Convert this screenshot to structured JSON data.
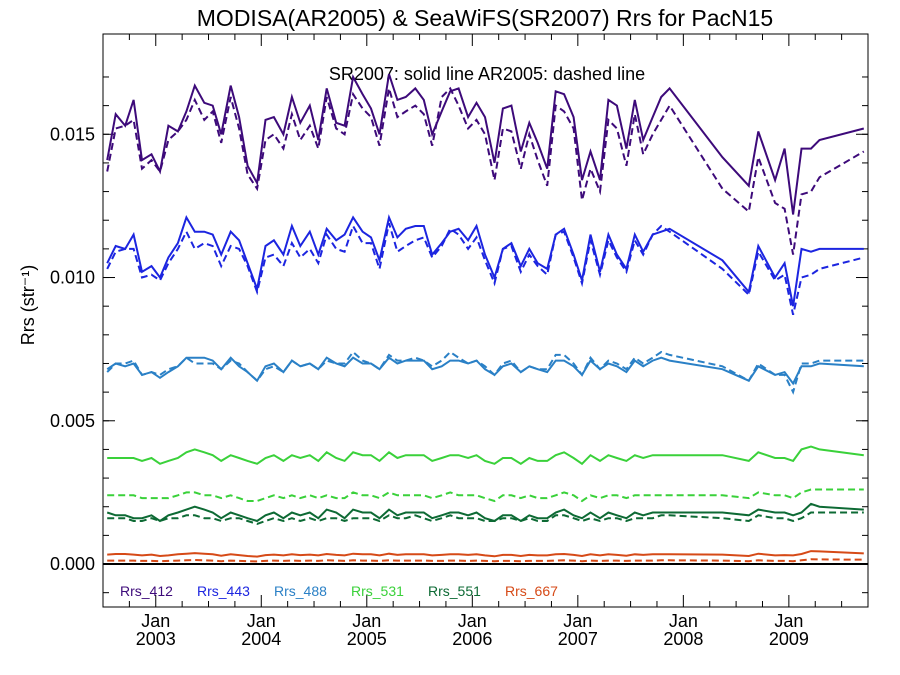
{
  "chart_data": {
    "type": "line",
    "title": "MODISA(AR2005) & SeaWiFS(SR2007)  Rrs for PacN15",
    "annotation": "SR2007: solid line   AR2005: dashed line",
    "ylabel": "Rrs (str⁻¹)",
    "xlabel": "",
    "ylim": [
      -0.0015,
      0.0185
    ],
    "xlim": [
      2002.5,
      2009.75
    ],
    "yticks": [
      0.0,
      0.005,
      0.01,
      0.015
    ],
    "ytick_labels": [
      "0.000",
      "0.005",
      "0.010",
      "0.015"
    ],
    "xticks": [
      2003.0,
      2004.0,
      2005.0,
      2006.0,
      2007.0,
      2008.0,
      2009.0
    ],
    "xtick_labels": [
      [
        "Jan",
        "2003"
      ],
      [
        "Jan",
        "2004"
      ],
      [
        "Jan",
        "2005"
      ],
      [
        "Jan",
        "2006"
      ],
      [
        "Jan",
        "2007"
      ],
      [
        "Jan",
        "2008"
      ],
      [
        "Jan",
        "2009"
      ]
    ],
    "x": [
      2002.54,
      2002.62,
      2002.71,
      2002.79,
      2002.87,
      2002.96,
      2003.04,
      2003.12,
      2003.21,
      2003.29,
      2003.37,
      2003.46,
      2003.54,
      2003.62,
      2003.71,
      2003.79,
      2003.87,
      2003.96,
      2004.04,
      2004.12,
      2004.21,
      2004.29,
      2004.37,
      2004.46,
      2004.54,
      2004.62,
      2004.71,
      2004.79,
      2004.87,
      2004.96,
      2005.04,
      2005.12,
      2005.21,
      2005.29,
      2005.37,
      2005.46,
      2005.54,
      2005.62,
      2005.71,
      2005.79,
      2005.87,
      2005.96,
      2006.04,
      2006.12,
      2006.21,
      2006.29,
      2006.37,
      2006.46,
      2006.54,
      2006.62,
      2006.71,
      2006.79,
      2006.87,
      2006.96,
      2007.04,
      2007.12,
      2007.21,
      2007.29,
      2007.37,
      2007.46,
      2007.54,
      2007.62,
      2007.71,
      2007.79,
      2007.87,
      2008.37,
      2008.62,
      2008.71,
      2008.87,
      2008.96,
      2009.04,
      2009.12,
      2009.21,
      2009.29,
      2009.71
    ],
    "zero_line": 0.0,
    "series": [
      {
        "name": "Rrs_412",
        "color": "#3d0a7a",
        "sr2007": [
          0.0141,
          0.0157,
          0.0153,
          0.0162,
          0.0141,
          0.0143,
          0.0137,
          0.0153,
          0.0151,
          0.0158,
          0.0167,
          0.0161,
          0.016,
          0.015,
          0.0167,
          0.0156,
          0.0139,
          0.0133,
          0.0155,
          0.0156,
          0.015,
          0.0163,
          0.0154,
          0.016,
          0.0148,
          0.0166,
          0.0154,
          0.0153,
          0.017,
          0.0164,
          0.0159,
          0.015,
          0.0171,
          0.0162,
          0.0163,
          0.0166,
          0.0162,
          0.015,
          0.0158,
          0.0165,
          0.0166,
          0.0156,
          0.0161,
          0.0156,
          0.014,
          0.0159,
          0.016,
          0.0144,
          0.0154,
          0.0147,
          0.0138,
          0.0165,
          0.0164,
          0.0156,
          0.0134,
          0.0144,
          0.0134,
          0.0162,
          0.016,
          0.0145,
          0.0162,
          0.0148,
          0.0156,
          0.0163,
          0.0166,
          0.0142,
          0.0132,
          0.0151,
          0.0134,
          0.0145,
          0.0122,
          0.0145,
          0.0145,
          0.0148,
          0.0152
        ],
        "ar2005": [
          0.0137,
          0.0152,
          0.0153,
          0.0155,
          0.0138,
          0.0141,
          0.0137,
          0.0148,
          0.0151,
          0.0155,
          0.0162,
          0.0155,
          0.0158,
          0.0147,
          0.0163,
          0.0152,
          0.0136,
          0.0131,
          0.0148,
          0.015,
          0.0145,
          0.0157,
          0.0148,
          0.0153,
          0.0145,
          0.0163,
          0.0152,
          0.015,
          0.0164,
          0.0159,
          0.0156,
          0.0146,
          0.0166,
          0.0156,
          0.0158,
          0.016,
          0.0157,
          0.0146,
          0.0163,
          0.0166,
          0.016,
          0.0152,
          0.0155,
          0.015,
          0.0134,
          0.0152,
          0.0151,
          0.0138,
          0.015,
          0.0141,
          0.0132,
          0.016,
          0.0158,
          0.0152,
          0.0127,
          0.0138,
          0.013,
          0.0155,
          0.0152,
          0.0139,
          0.0157,
          0.0143,
          0.015,
          0.0155,
          0.016,
          0.0131,
          0.0123,
          0.0142,
          0.0126,
          0.0124,
          0.0108,
          0.0129,
          0.013,
          0.0135,
          0.0144
        ]
      },
      {
        "name": "Rrs_443",
        "color": "#1c25e0",
        "sr2007": [
          0.0105,
          0.0111,
          0.011,
          0.0115,
          0.0102,
          0.0104,
          0.01,
          0.0107,
          0.0112,
          0.0121,
          0.0116,
          0.0116,
          0.0115,
          0.0108,
          0.0116,
          0.0113,
          0.0105,
          0.0096,
          0.0111,
          0.0113,
          0.0108,
          0.0118,
          0.0111,
          0.0116,
          0.0108,
          0.0117,
          0.0113,
          0.0115,
          0.0121,
          0.0116,
          0.0114,
          0.0106,
          0.0121,
          0.0114,
          0.0117,
          0.0118,
          0.0118,
          0.0108,
          0.0112,
          0.0116,
          0.0117,
          0.0113,
          0.0118,
          0.0108,
          0.01,
          0.011,
          0.0112,
          0.0104,
          0.011,
          0.0105,
          0.0103,
          0.0115,
          0.0117,
          0.0108,
          0.0099,
          0.0115,
          0.0102,
          0.0115,
          0.0108,
          0.0103,
          0.0115,
          0.0109,
          0.0115,
          0.0116,
          0.0117,
          0.0106,
          0.0095,
          0.0111,
          0.01,
          0.0105,
          0.009,
          0.011,
          0.0109,
          0.011,
          0.011
        ],
        "ar2005": [
          0.0103,
          0.0109,
          0.011,
          0.011,
          0.01,
          0.0101,
          0.0099,
          0.0105,
          0.011,
          0.0116,
          0.011,
          0.0112,
          0.0111,
          0.0104,
          0.0111,
          0.011,
          0.0104,
          0.0095,
          0.0107,
          0.0108,
          0.0104,
          0.0112,
          0.0107,
          0.011,
          0.0105,
          0.0115,
          0.011,
          0.0109,
          0.0118,
          0.0112,
          0.0112,
          0.0103,
          0.0119,
          0.0109,
          0.0111,
          0.0113,
          0.0114,
          0.0107,
          0.0111,
          0.0117,
          0.0115,
          0.011,
          0.0114,
          0.0106,
          0.0098,
          0.011,
          0.0111,
          0.0102,
          0.0108,
          0.0104,
          0.0101,
          0.0115,
          0.0116,
          0.0107,
          0.0098,
          0.0113,
          0.0101,
          0.0113,
          0.0107,
          0.0102,
          0.0113,
          0.0108,
          0.0115,
          0.0118,
          0.0116,
          0.0103,
          0.0094,
          0.0109,
          0.0099,
          0.0101,
          0.0087,
          0.01,
          0.0101,
          0.0103,
          0.0107
        ]
      },
      {
        "name": "Rrs_488",
        "color": "#2a80c6",
        "sr2007": [
          0.0068,
          0.007,
          0.0069,
          0.007,
          0.0066,
          0.0067,
          0.0065,
          0.0067,
          0.0069,
          0.0072,
          0.0072,
          0.0072,
          0.0071,
          0.0068,
          0.0072,
          0.0069,
          0.0067,
          0.0064,
          0.0069,
          0.007,
          0.0067,
          0.0071,
          0.0069,
          0.007,
          0.0068,
          0.0072,
          0.007,
          0.0069,
          0.0072,
          0.007,
          0.007,
          0.0068,
          0.0072,
          0.007,
          0.0071,
          0.0071,
          0.0071,
          0.0068,
          0.0069,
          0.0071,
          0.0071,
          0.007,
          0.0071,
          0.0068,
          0.0066,
          0.0069,
          0.007,
          0.0067,
          0.0069,
          0.0068,
          0.0067,
          0.0071,
          0.0071,
          0.0069,
          0.0066,
          0.0071,
          0.0068,
          0.007,
          0.0069,
          0.0067,
          0.0071,
          0.0069,
          0.0071,
          0.0072,
          0.0071,
          0.0068,
          0.0064,
          0.0069,
          0.0066,
          0.0067,
          0.0063,
          0.0069,
          0.0069,
          0.007,
          0.0069
        ],
        "ar2005": [
          0.0067,
          0.007,
          0.007,
          0.0071,
          0.0066,
          0.0067,
          0.0066,
          0.0068,
          0.0069,
          0.0072,
          0.007,
          0.007,
          0.007,
          0.0068,
          0.0071,
          0.007,
          0.0067,
          0.0064,
          0.0068,
          0.0069,
          0.0067,
          0.0071,
          0.0069,
          0.007,
          0.0068,
          0.0071,
          0.007,
          0.007,
          0.0074,
          0.0071,
          0.007,
          0.0068,
          0.0073,
          0.0071,
          0.0071,
          0.0072,
          0.0071,
          0.0069,
          0.0071,
          0.0074,
          0.0072,
          0.007,
          0.0071,
          0.0069,
          0.0066,
          0.007,
          0.0071,
          0.0067,
          0.0069,
          0.0068,
          0.0068,
          0.0073,
          0.0073,
          0.007,
          0.0066,
          0.0072,
          0.0068,
          0.0071,
          0.007,
          0.0068,
          0.0072,
          0.007,
          0.0072,
          0.0074,
          0.0073,
          0.0069,
          0.0064,
          0.007,
          0.0066,
          0.0066,
          0.006,
          0.007,
          0.007,
          0.0071,
          0.0071
        ]
      },
      {
        "name": "Rrs_531",
        "color": "#3ad13a",
        "sr2007": [
          0.0037,
          0.0037,
          0.0037,
          0.0037,
          0.0036,
          0.0037,
          0.0035,
          0.0036,
          0.0037,
          0.0039,
          0.004,
          0.0039,
          0.0038,
          0.0036,
          0.0038,
          0.0037,
          0.0036,
          0.0035,
          0.0037,
          0.0038,
          0.0036,
          0.0038,
          0.0037,
          0.0038,
          0.0036,
          0.0039,
          0.0037,
          0.0036,
          0.0039,
          0.0038,
          0.0038,
          0.0036,
          0.0039,
          0.0037,
          0.0038,
          0.0038,
          0.0038,
          0.0036,
          0.0037,
          0.0038,
          0.0038,
          0.0037,
          0.0038,
          0.0036,
          0.0035,
          0.0037,
          0.0037,
          0.0035,
          0.0037,
          0.0036,
          0.0036,
          0.0038,
          0.0039,
          0.0037,
          0.0035,
          0.0038,
          0.0036,
          0.0038,
          0.0037,
          0.0036,
          0.0038,
          0.0037,
          0.0038,
          0.0038,
          0.0038,
          0.0038,
          0.0036,
          0.0039,
          0.0037,
          0.0037,
          0.0036,
          0.004,
          0.0041,
          0.004,
          0.0038
        ],
        "ar2005": [
          0.0024,
          0.0024,
          0.0024,
          0.0024,
          0.0023,
          0.0023,
          0.0023,
          0.0023,
          0.0024,
          0.0025,
          0.0025,
          0.0024,
          0.0024,
          0.0023,
          0.0024,
          0.0023,
          0.0022,
          0.0022,
          0.0023,
          0.0024,
          0.0023,
          0.0024,
          0.0023,
          0.0024,
          0.0023,
          0.0024,
          0.0023,
          0.0023,
          0.0025,
          0.0024,
          0.0024,
          0.0023,
          0.0025,
          0.0024,
          0.0024,
          0.0024,
          0.0024,
          0.0023,
          0.0024,
          0.0025,
          0.0024,
          0.0024,
          0.0024,
          0.0023,
          0.0022,
          0.0024,
          0.0024,
          0.0023,
          0.0024,
          0.0023,
          0.0023,
          0.0024,
          0.0025,
          0.0024,
          0.0022,
          0.0024,
          0.0023,
          0.0024,
          0.0024,
          0.0023,
          0.0024,
          0.0024,
          0.0024,
          0.0024,
          0.0024,
          0.0024,
          0.0023,
          0.0025,
          0.0024,
          0.0024,
          0.0023,
          0.0025,
          0.0026,
          0.0026,
          0.0026
        ]
      },
      {
        "name": "Rrs_551",
        "color": "#0d6a34",
        "sr2007": [
          0.0018,
          0.0017,
          0.0017,
          0.0016,
          0.0016,
          0.0017,
          0.0015,
          0.0017,
          0.0018,
          0.0019,
          0.002,
          0.0019,
          0.0018,
          0.0016,
          0.0018,
          0.0017,
          0.0016,
          0.0015,
          0.0017,
          0.0018,
          0.0016,
          0.0018,
          0.0017,
          0.0018,
          0.0016,
          0.0019,
          0.0018,
          0.0016,
          0.0019,
          0.0018,
          0.0018,
          0.0016,
          0.0019,
          0.0017,
          0.0018,
          0.0018,
          0.0018,
          0.0016,
          0.0017,
          0.0018,
          0.0018,
          0.0017,
          0.0018,
          0.0016,
          0.0015,
          0.0017,
          0.0017,
          0.0015,
          0.0017,
          0.0016,
          0.0016,
          0.0018,
          0.0019,
          0.0017,
          0.0016,
          0.0018,
          0.0016,
          0.0018,
          0.0017,
          0.0016,
          0.0018,
          0.0017,
          0.0018,
          0.0018,
          0.0018,
          0.0018,
          0.0017,
          0.0019,
          0.0018,
          0.0018,
          0.0017,
          0.0018,
          0.0021,
          0.002,
          0.0019
        ],
        "ar2005": [
          0.0016,
          0.0016,
          0.0016,
          0.0015,
          0.0015,
          0.0016,
          0.0015,
          0.0016,
          0.0016,
          0.0017,
          0.0017,
          0.0016,
          0.0016,
          0.0015,
          0.0016,
          0.0016,
          0.0015,
          0.0014,
          0.0015,
          0.0016,
          0.0015,
          0.0016,
          0.0015,
          0.0016,
          0.0015,
          0.0016,
          0.0016,
          0.0015,
          0.0016,
          0.0016,
          0.0016,
          0.0015,
          0.0017,
          0.0016,
          0.0016,
          0.0017,
          0.0016,
          0.0015,
          0.0016,
          0.0017,
          0.0016,
          0.0016,
          0.0016,
          0.0015,
          0.0015,
          0.0016,
          0.0016,
          0.0015,
          0.0016,
          0.0015,
          0.0015,
          0.0017,
          0.0017,
          0.0016,
          0.0015,
          0.0016,
          0.0015,
          0.0016,
          0.0016,
          0.0015,
          0.0016,
          0.0016,
          0.0016,
          0.0017,
          0.0017,
          0.0016,
          0.0015,
          0.0017,
          0.0016,
          0.0016,
          0.0015,
          0.0016,
          0.0018,
          0.0018,
          0.0018
        ]
      },
      {
        "name": "Rrs_667",
        "color": "#d64a17",
        "sr2007": [
          0.00033,
          0.00035,
          0.00035,
          0.00033,
          0.0003,
          0.00033,
          0.00028,
          0.0003,
          0.00034,
          0.00036,
          0.00038,
          0.00036,
          0.00034,
          0.00029,
          0.00034,
          0.00031,
          0.00028,
          0.00026,
          0.00031,
          0.00033,
          0.0003,
          0.00034,
          0.00031,
          0.00033,
          0.0003,
          0.00035,
          0.00032,
          0.0003,
          0.00036,
          0.00034,
          0.00034,
          0.0003,
          0.00036,
          0.00032,
          0.00034,
          0.00034,
          0.00034,
          0.0003,
          0.00032,
          0.00034,
          0.00034,
          0.00032,
          0.00034,
          0.0003,
          0.00027,
          0.00032,
          0.00032,
          0.00028,
          0.00032,
          0.0003,
          0.0003,
          0.00034,
          0.00035,
          0.00032,
          0.00028,
          0.00034,
          0.0003,
          0.00034,
          0.00032,
          0.00029,
          0.00034,
          0.00032,
          0.00034,
          0.00034,
          0.00034,
          0.00033,
          0.00028,
          0.00036,
          0.0003,
          0.00031,
          0.0003,
          0.00035,
          0.00045,
          0.00044,
          0.00037
        ],
        "ar2005": [
          0.00012,
          0.00012,
          0.00012,
          0.00012,
          0.00011,
          0.00011,
          0.0001,
          0.00011,
          0.00012,
          0.00013,
          0.00014,
          0.00013,
          0.00012,
          0.0001,
          0.00012,
          0.00011,
          0.0001,
          9e-05,
          0.00011,
          0.00012,
          0.00011,
          0.00012,
          0.00011,
          0.00012,
          0.00011,
          0.00013,
          0.00012,
          0.00011,
          0.00013,
          0.00012,
          0.00012,
          0.00011,
          0.00013,
          0.00012,
          0.00012,
          0.00012,
          0.00012,
          0.00011,
          0.00011,
          0.00012,
          0.00012,
          0.00011,
          0.00012,
          0.00011,
          0.0001,
          0.00011,
          0.00011,
          0.0001,
          0.00011,
          0.00011,
          0.00011,
          0.00012,
          0.00013,
          0.00012,
          0.0001,
          0.00012,
          0.00011,
          0.00012,
          0.00012,
          0.00011,
          0.00012,
          0.00012,
          0.00012,
          0.00013,
          0.00013,
          0.00012,
          0.0001,
          0.00013,
          0.00011,
          0.00011,
          0.0001,
          0.00013,
          0.00017,
          0.00016,
          0.00015
        ]
      }
    ],
    "legend": [
      "Rrs_412",
      "Rrs_443",
      "Rrs_488",
      "Rrs_531",
      "Rrs_551",
      "Rrs_667"
    ],
    "legend_placement": "bottom-left"
  }
}
